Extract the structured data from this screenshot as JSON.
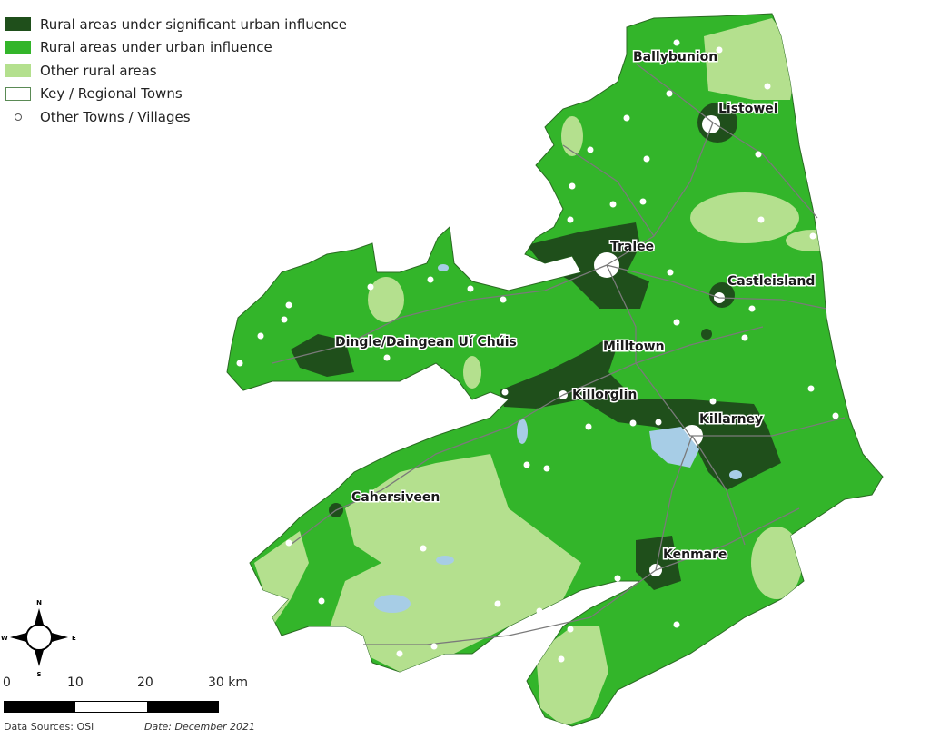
{
  "legend": {
    "items": [
      {
        "label": "Rural areas under significant urban influence",
        "color": "#1f4f1b"
      },
      {
        "label": "Rural areas under urban influence",
        "color": "#33b52a"
      },
      {
        "label": "Other rural areas",
        "color": "#b4e08e"
      },
      {
        "label": "Key / Regional Towns",
        "color": "#ffffff"
      },
      {
        "label": "Other Towns / Villages",
        "color": "#ffffff"
      }
    ]
  },
  "colors": {
    "water": "#a7cde6",
    "roads": "#7a7a7a"
  },
  "key_towns": [
    "Ballybunion",
    "Listowel",
    "Tralee",
    "Castleisland",
    "Dingle/Daingean Uí Chúis",
    "Milltown",
    "Killorglin",
    "Killarney",
    "Cahersiveen",
    "Kenmare"
  ],
  "compass": {
    "n": "N",
    "s": "S",
    "e": "E",
    "w": "W"
  },
  "scale": {
    "labels": [
      "0",
      "10",
      "20",
      "30 km"
    ]
  },
  "footer": {
    "sources": "Data Sources: OSi",
    "date": "Date: December 2021"
  }
}
